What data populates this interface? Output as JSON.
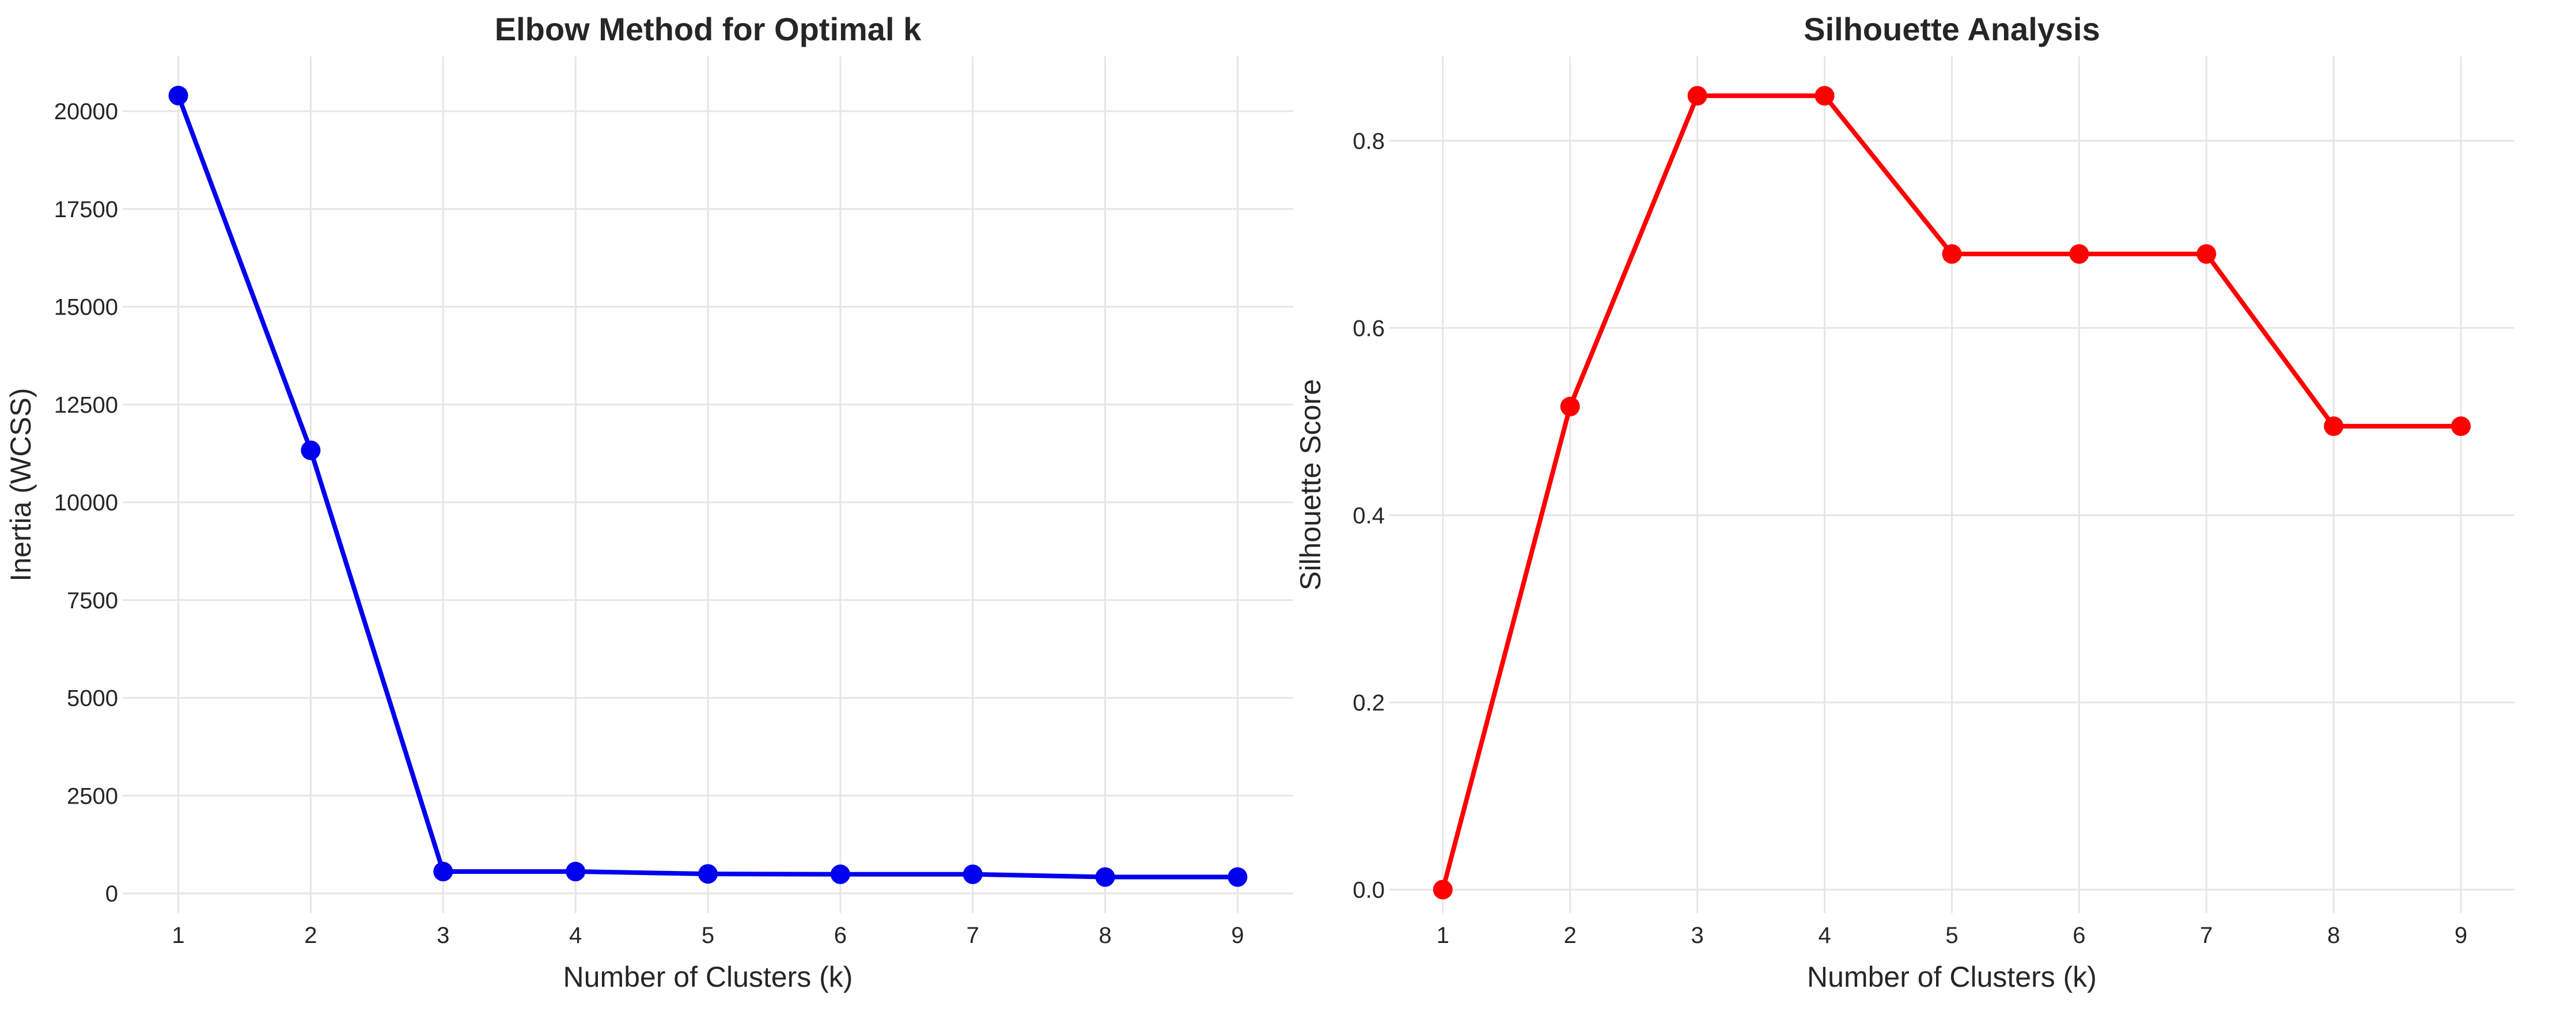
{
  "chart_data": [
    {
      "type": "line",
      "title": "Elbow Method for Optimal k",
      "xlabel": "Number of Clusters (k)",
      "ylabel": "Inertia (WCSS)",
      "x": [
        1,
        2,
        3,
        4,
        5,
        6,
        7,
        8,
        9
      ],
      "xticks": [
        1,
        2,
        3,
        4,
        5,
        6,
        7,
        8,
        9
      ],
      "yticks": [
        0,
        2500,
        5000,
        7500,
        10000,
        12500,
        15000,
        17500,
        20000
      ],
      "xlim": [
        0.58,
        9.42
      ],
      "ylim": [
        -500,
        21400
      ],
      "grid": true,
      "series": [
        {
          "values": [
            20400,
            11330,
            560,
            560,
            500,
            490,
            490,
            420,
            420
          ],
          "color": "#0000ee"
        }
      ]
    },
    {
      "type": "line",
      "title": "Silhouette Analysis",
      "xlabel": "Number of Clusters (k)",
      "ylabel": "Silhouette Score",
      "x": [
        1,
        2,
        3,
        4,
        5,
        6,
        7,
        8,
        9
      ],
      "xticks": [
        1,
        2,
        3,
        4,
        5,
        6,
        7,
        8,
        9
      ],
      "yticks": [
        0.0,
        0.2,
        0.4,
        0.6,
        0.8
      ],
      "ytick_labels": [
        "0.0",
        "0.2",
        "0.4",
        "0.6",
        "0.8"
      ],
      "xlim": [
        0.58,
        9.42
      ],
      "ylim": [
        -0.025,
        0.89
      ],
      "grid": true,
      "series": [
        {
          "values": [
            0.0,
            0.516,
            0.848,
            0.848,
            0.679,
            0.679,
            0.679,
            0.495,
            0.495
          ],
          "color": "#ff0000"
        }
      ]
    }
  ]
}
